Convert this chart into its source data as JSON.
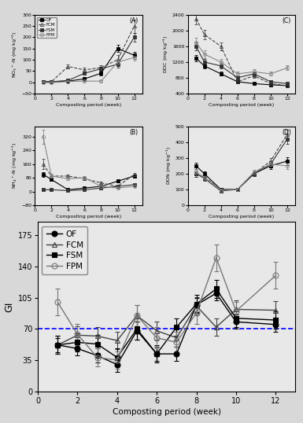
{
  "weeks_top": [
    1,
    2,
    4,
    6,
    8,
    10,
    12
  ],
  "weeks_gi": [
    1,
    2,
    3,
    4,
    5,
    6,
    7,
    8,
    9,
    10,
    12
  ],
  "A_OF": [
    2,
    2,
    5,
    15,
    40,
    150,
    120
  ],
  "A_FCM": [
    2,
    2,
    70,
    55,
    65,
    100,
    250
  ],
  "A_FSM": [
    2,
    2,
    8,
    40,
    60,
    80,
    200
  ],
  "A_FPM": [
    -2,
    -2,
    3,
    5,
    5,
    90,
    110
  ],
  "A_OF_err": [
    3,
    3,
    5,
    8,
    10,
    15,
    15
  ],
  "A_FCM_err": [
    3,
    3,
    10,
    10,
    10,
    20,
    30
  ],
  "A_FSM_err": [
    3,
    3,
    5,
    8,
    10,
    15,
    20
  ],
  "A_FPM_err": [
    3,
    3,
    3,
    5,
    5,
    15,
    15
  ],
  "B_OF": [
    100,
    70,
    10,
    20,
    30,
    60,
    90
  ],
  "B_FCM": [
    160,
    90,
    90,
    75,
    50,
    30,
    100
  ],
  "B_FSM": [
    10,
    10,
    5,
    10,
    20,
    30,
    40
  ],
  "B_FPM": [
    320,
    90,
    75,
    80,
    30,
    20,
    30
  ],
  "B_OF_err": [
    15,
    10,
    5,
    5,
    5,
    8,
    10
  ],
  "B_FCM_err": [
    30,
    15,
    10,
    10,
    8,
    5,
    10
  ],
  "B_FSM_err": [
    5,
    5,
    3,
    3,
    3,
    5,
    5
  ],
  "B_FPM_err": [
    40,
    15,
    10,
    10,
    5,
    5,
    5
  ],
  "C_OF": [
    1300,
    1100,
    900,
    700,
    650,
    620,
    600
  ],
  "C_FCM": [
    2300,
    1900,
    1600,
    700,
    850,
    650,
    600
  ],
  "C_FSM": [
    1600,
    1200,
    1100,
    800,
    900,
    700,
    650
  ],
  "C_FPM": [
    1700,
    1400,
    1200,
    900,
    950,
    900,
    1050
  ],
  "C_OF_err": [
    80,
    60,
    50,
    40,
    30,
    30,
    30
  ],
  "C_FCM_err": [
    150,
    120,
    100,
    50,
    50,
    40,
    30
  ],
  "C_FSM_err": [
    100,
    80,
    70,
    50,
    60,
    40,
    30
  ],
  "C_FPM_err": [
    120,
    100,
    80,
    60,
    70,
    50,
    60
  ],
  "D_OF": [
    250,
    200,
    100,
    100,
    200,
    250,
    280
  ],
  "D_FCM": [
    200,
    180,
    100,
    100,
    200,
    280,
    450
  ],
  "D_FSM": [
    200,
    170,
    90,
    100,
    200,
    260,
    420
  ],
  "D_FPM": [
    210,
    175,
    95,
    100,
    210,
    260,
    250
  ],
  "D_OF_err": [
    20,
    15,
    10,
    10,
    15,
    20,
    25
  ],
  "D_FCM_err": [
    20,
    15,
    10,
    10,
    15,
    20,
    30
  ],
  "D_FSM_err": [
    20,
    15,
    10,
    10,
    15,
    20,
    30
  ],
  "D_FPM_err": [
    20,
    15,
    10,
    10,
    15,
    20,
    20
  ],
  "GI_OF": [
    52,
    48,
    40,
    30,
    68,
    42,
    42,
    97,
    110,
    78,
    75
  ],
  "GI_FCM": [
    52,
    63,
    62,
    57,
    85,
    68,
    60,
    96,
    72,
    92,
    91
  ],
  "GI_FSM": [
    52,
    55,
    53,
    38,
    70,
    42,
    72,
    98,
    115,
    82,
    80
  ],
  "GI_FPM": [
    100,
    64,
    38,
    35,
    85,
    60,
    55,
    88,
    150,
    90,
    130
  ],
  "GI_OF_err": [
    8,
    8,
    8,
    8,
    10,
    8,
    8,
    8,
    8,
    8,
    8
  ],
  "GI_FCM_err": [
    10,
    10,
    10,
    10,
    12,
    10,
    10,
    10,
    10,
    10,
    10
  ],
  "GI_FSM_err": [
    10,
    10,
    10,
    10,
    12,
    10,
    10,
    10,
    10,
    10,
    10
  ],
  "GI_FPM_err": [
    15,
    12,
    10,
    10,
    12,
    12,
    12,
    12,
    15,
    10,
    15
  ],
  "bg_color": "#d8d8d8",
  "panel_bg": "#e8e8e8"
}
